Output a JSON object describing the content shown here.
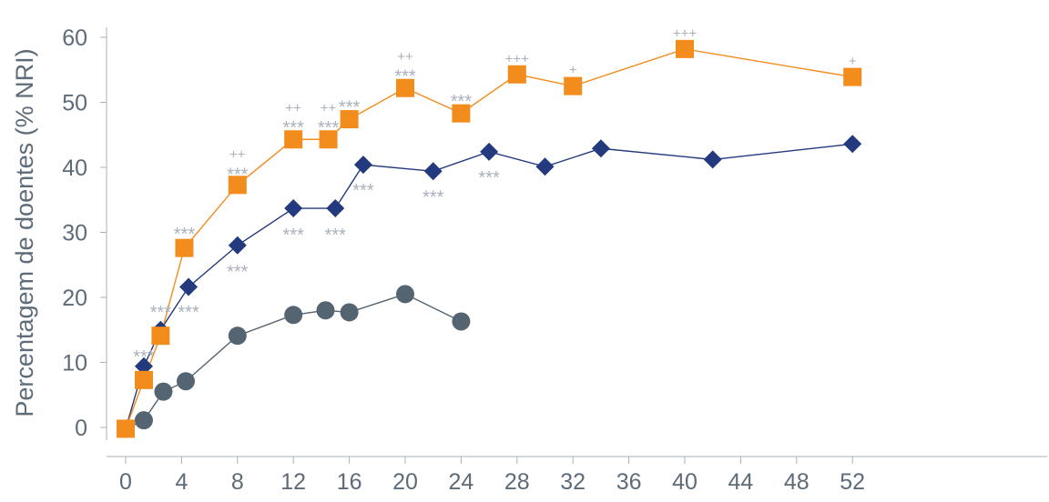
{
  "chart_data": {
    "type": "line",
    "title": "",
    "xlabel": "",
    "ylabel": "Percentagem de doentes (% NRI)",
    "x_ticks": [
      "0",
      "4",
      "8",
      "12",
      "16",
      "20",
      "24",
      "28",
      "32",
      "36",
      "40",
      "44",
      "48",
      "52"
    ],
    "y_ticks": [
      "0",
      "10",
      "20",
      "30",
      "40",
      "50",
      "60"
    ],
    "ylim": [
      -3,
      64
    ],
    "grid": false,
    "series": [
      {
        "marker": "square",
        "color": "#f28c1c",
        "x": [
          0,
          1.3,
          2.5,
          4.2,
          8,
          12,
          14.5,
          16,
          20,
          24,
          28,
          32,
          40,
          52
        ],
        "y": [
          -0.2,
          7.3,
          14.1,
          27.6,
          37.3,
          44.3,
          44.3,
          47.4,
          52.2,
          48.3,
          54.3,
          52.5,
          58.2,
          53.9
        ]
      },
      {
        "marker": "diamond",
        "color": "#233a7e",
        "x": [
          0,
          1.3,
          2.5,
          4.5,
          8,
          12,
          15,
          17,
          22,
          26,
          30,
          34,
          42,
          52
        ],
        "y": [
          -0.2,
          9.4,
          15.0,
          21.6,
          28.0,
          33.7,
          33.7,
          40.4,
          39.4,
          42.4,
          40.1,
          42.9,
          41.2,
          43.6
        ]
      },
      {
        "marker": "circle",
        "color": "#546470",
        "x": [
          0,
          1.3,
          2.7,
          4.3,
          8,
          12,
          14.3,
          16,
          20,
          24
        ],
        "y": [
          -0.2,
          1.1,
          5.5,
          7.1,
          14.1,
          17.3,
          18.0,
          17.7,
          20.5,
          16.3
        ]
      }
    ],
    "annotations": [
      {
        "text": "***",
        "x": 1.3,
        "y": 11.3
      },
      {
        "text": "***",
        "x": 2.5,
        "y": 18.2
      },
      {
        "text": "***",
        "x": 4.5,
        "y": 18.2
      },
      {
        "text": "***",
        "x": 4.2,
        "y": 30.2
      },
      {
        "text": "***",
        "x": 8,
        "y": 39.4
      },
      {
        "text": "++",
        "x": 8,
        "y": 41.9
      },
      {
        "text": "***",
        "x": 8,
        "y": 24.4
      },
      {
        "text": "***",
        "x": 12,
        "y": 46.6
      },
      {
        "text": "++",
        "x": 12,
        "y": 49.0
      },
      {
        "text": "***",
        "x": 14.5,
        "y": 46.6
      },
      {
        "text": "++",
        "x": 14.5,
        "y": 49.0
      },
      {
        "text": "***",
        "x": 12,
        "y": 30.1
      },
      {
        "text": "***",
        "x": 15,
        "y": 30.1
      },
      {
        "text": "***",
        "x": 16,
        "y": 49.7
      },
      {
        "text": "***",
        "x": 17,
        "y": 36.9
      },
      {
        "text": "***",
        "x": 20,
        "y": 54.5
      },
      {
        "text": "++",
        "x": 20,
        "y": 56.9
      },
      {
        "text": "***",
        "x": 22,
        "y": 35.9
      },
      {
        "text": "***",
        "x": 24,
        "y": 50.6
      },
      {
        "text": "***",
        "x": 26,
        "y": 38.9
      },
      {
        "text": "+++",
        "x": 28,
        "y": 56.6
      },
      {
        "text": "+",
        "x": 32,
        "y": 54.9
      },
      {
        "text": "+++",
        "x": 40,
        "y": 60.5
      },
      {
        "text": "+",
        "x": 52,
        "y": 56.2
      }
    ]
  }
}
